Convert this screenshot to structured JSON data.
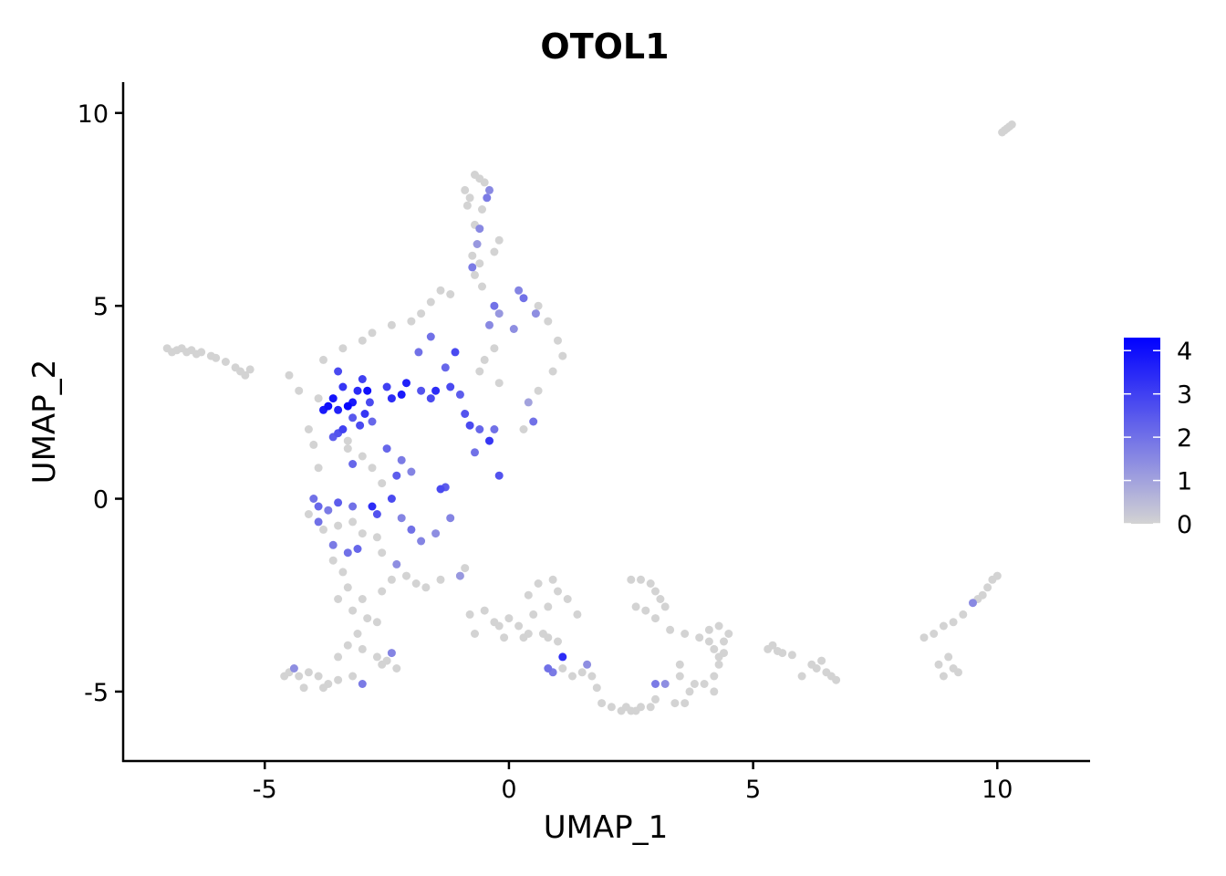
{
  "chart_data": {
    "type": "scatter",
    "title": "OTOL1",
    "xlabel": "UMAP_1",
    "ylabel": "UMAP_2",
    "xlim": [
      -7.9,
      11.9
    ],
    "ylim": [
      -6.8,
      10.8
    ],
    "x_ticks": [
      -5,
      0,
      5,
      10
    ],
    "y_ticks": [
      -5,
      0,
      5,
      10
    ],
    "x_tick_labels": [
      "-5",
      "0",
      "5",
      "10"
    ],
    "y_tick_labels": [
      "-5",
      "0",
      "5",
      "10"
    ],
    "grid": false,
    "legend": {
      "placement": "right",
      "type": "colorbar",
      "min": 0,
      "max": 4.3,
      "ticks": [
        0,
        1,
        2,
        3,
        4
      ],
      "tick_labels": [
        "0",
        "1",
        "2",
        "3",
        "4"
      ],
      "low_color": "#d3d3d3",
      "high_color": "#0000ff"
    },
    "point_color_low": "#d3d3d3",
    "point_color_high": "#0000ff",
    "points": [
      [
        -7.0,
        3.9,
        0
      ],
      [
        -6.9,
        3.8,
        0
      ],
      [
        -6.8,
        3.85,
        0
      ],
      [
        -6.7,
        3.9,
        0
      ],
      [
        -6.6,
        3.8,
        0
      ],
      [
        -6.5,
        3.85,
        0
      ],
      [
        -6.4,
        3.75,
        0
      ],
      [
        -6.3,
        3.8,
        0
      ],
      [
        -6.1,
        3.7,
        0
      ],
      [
        -6.0,
        3.65,
        0
      ],
      [
        -5.8,
        3.55,
        0
      ],
      [
        -5.6,
        3.4,
        0
      ],
      [
        -5.5,
        3.3,
        0
      ],
      [
        -5.4,
        3.2,
        0
      ],
      [
        -5.3,
        3.35,
        0
      ],
      [
        10.1,
        9.5,
        0
      ],
      [
        10.2,
        9.6,
        0
      ],
      [
        10.3,
        9.7,
        0
      ],
      [
        10.25,
        9.65,
        0
      ],
      [
        10.15,
        9.55,
        0
      ],
      [
        -0.9,
        8.0,
        0
      ],
      [
        -0.7,
        8.4,
        0
      ],
      [
        -0.6,
        8.3,
        0
      ],
      [
        -0.5,
        8.2,
        0
      ],
      [
        -0.4,
        8.0,
        1.5
      ],
      [
        -0.8,
        7.8,
        0
      ],
      [
        -0.55,
        7.5,
        0
      ],
      [
        -0.7,
        7.1,
        0
      ],
      [
        -0.6,
        7.0,
        1.5
      ],
      [
        -0.65,
        6.6,
        1.2
      ],
      [
        -0.75,
        6.3,
        0
      ],
      [
        -0.6,
        6.1,
        0
      ],
      [
        -0.7,
        5.8,
        0
      ],
      [
        -0.55,
        5.5,
        0
      ],
      [
        -0.3,
        6.4,
        0
      ],
      [
        -0.2,
        6.7,
        0
      ],
      [
        -0.75,
        6.0,
        1.8
      ],
      [
        -0.45,
        7.8,
        1.8
      ],
      [
        -0.85,
        7.6,
        0
      ],
      [
        -1.4,
        5.4,
        0
      ],
      [
        -1.2,
        5.3,
        0
      ],
      [
        -1.6,
        5.1,
        0
      ],
      [
        -1.8,
        4.8,
        0
      ],
      [
        -2.0,
        4.6,
        0
      ],
      [
        -2.4,
        4.5,
        0
      ],
      [
        -2.8,
        4.3,
        0
      ],
      [
        -3.0,
        4.1,
        0
      ],
      [
        -3.4,
        3.9,
        0
      ],
      [
        -3.8,
        3.6,
        0
      ],
      [
        -4.5,
        3.2,
        0
      ],
      [
        -4.3,
        2.8,
        0
      ],
      [
        -3.5,
        3.3,
        2.8
      ],
      [
        -3.4,
        2.9,
        3.2
      ],
      [
        -3.6,
        2.6,
        3.9
      ],
      [
        -3.7,
        2.4,
        4.0
      ],
      [
        -3.5,
        2.3,
        3.6
      ],
      [
        -3.3,
        2.4,
        4.2
      ],
      [
        -3.2,
        2.5,
        3.8
      ],
      [
        -3.1,
        2.8,
        3.4
      ],
      [
        -2.9,
        2.8,
        4.0
      ],
      [
        -3.0,
        3.1,
        3.0
      ],
      [
        -2.85,
        2.5,
        2.8
      ],
      [
        -3.2,
        2.1,
        2.5
      ],
      [
        -2.95,
        2.2,
        3.2
      ],
      [
        -3.05,
        1.9,
        2.8
      ],
      [
        -3.4,
        1.8,
        3.0
      ],
      [
        -3.5,
        1.7,
        2.6
      ],
      [
        -2.8,
        2.0,
        2.2
      ],
      [
        -3.8,
        2.3,
        3.8
      ],
      [
        -3.9,
        2.6,
        0
      ],
      [
        -3.6,
        1.6,
        2.4
      ],
      [
        -3.3,
        1.5,
        0
      ],
      [
        -2.1,
        3.0,
        3.6
      ],
      [
        -2.2,
        2.7,
        3.8
      ],
      [
        -2.4,
        2.6,
        3.4
      ],
      [
        -2.5,
        2.9,
        3.0
      ],
      [
        -1.8,
        2.8,
        2.6
      ],
      [
        -1.6,
        2.6,
        2.8
      ],
      [
        -1.5,
        2.8,
        3.4
      ],
      [
        -1.2,
        2.9,
        2.8
      ],
      [
        -1.0,
        2.7,
        2.4
      ],
      [
        -1.3,
        3.4,
        2.2
      ],
      [
        -1.1,
        3.8,
        2.8
      ],
      [
        -1.6,
        4.2,
        2.0
      ],
      [
        -1.85,
        3.8,
        2.0
      ],
      [
        -0.9,
        2.2,
        2.6
      ],
      [
        -0.8,
        1.9,
        2.8
      ],
      [
        -0.6,
        1.8,
        2.2
      ],
      [
        -0.4,
        1.5,
        3.2
      ],
      [
        -0.3,
        1.8,
        2.0
      ],
      [
        -0.7,
        1.2,
        2.0
      ],
      [
        -1.3,
        0.3,
        2.4
      ],
      [
        -1.4,
        0.25,
        2.8
      ],
      [
        -0.2,
        0.6,
        2.6
      ],
      [
        -0.5,
        3.6,
        0
      ],
      [
        -0.3,
        3.9,
        0
      ],
      [
        -0.6,
        3.3,
        0
      ],
      [
        -0.2,
        3.0,
        0
      ],
      [
        -0.3,
        5.0,
        2.0
      ],
      [
        -0.2,
        4.8,
        1.2
      ],
      [
        -0.4,
        4.5,
        1.5
      ],
      [
        0.1,
        4.4,
        1.4
      ],
      [
        0.3,
        5.2,
        2.0
      ],
      [
        0.6,
        5.0,
        0
      ],
      [
        0.8,
        4.6,
        0
      ],
      [
        1.0,
        4.1,
        0
      ],
      [
        1.1,
        3.7,
        0
      ],
      [
        0.9,
        3.3,
        0
      ],
      [
        0.6,
        2.8,
        0
      ],
      [
        0.4,
        2.5,
        1.0
      ],
      [
        0.5,
        2.0,
        2.0
      ],
      [
        0.3,
        1.8,
        0
      ],
      [
        0.55,
        4.8,
        1.4
      ],
      [
        0.2,
        5.4,
        1.6
      ],
      [
        -3.3,
        1.3,
        0
      ],
      [
        -3.0,
        1.1,
        0
      ],
      [
        -2.8,
        0.8,
        0
      ],
      [
        -2.5,
        1.3,
        2.2
      ],
      [
        -2.2,
        1.0,
        1.8
      ],
      [
        -2.0,
        0.7,
        1.6
      ],
      [
        -2.3,
        0.6,
        2.4
      ],
      [
        -2.6,
        0.4,
        0
      ],
      [
        -3.2,
        0.9,
        2.2
      ],
      [
        -3.9,
        0.8,
        0
      ],
      [
        -4.0,
        1.4,
        0
      ],
      [
        -4.1,
        1.8,
        0
      ],
      [
        -4.0,
        0.0,
        2.0
      ],
      [
        -3.9,
        -0.2,
        2.2
      ],
      [
        -3.7,
        -0.3,
        1.8
      ],
      [
        -3.5,
        -0.1,
        2.4
      ],
      [
        -3.2,
        -0.2,
        2.0
      ],
      [
        -2.8,
        -0.2,
        3.4
      ],
      [
        -2.7,
        -0.4,
        2.6
      ],
      [
        -2.4,
        0.0,
        2.8
      ],
      [
        -2.2,
        -0.5,
        1.6
      ],
      [
        -2.0,
        -0.8,
        2.0
      ],
      [
        -1.8,
        -1.1,
        1.6
      ],
      [
        -1.5,
        -0.9,
        1.4
      ],
      [
        -1.2,
        -0.5,
        1.6
      ],
      [
        -3.9,
        -0.6,
        2.0
      ],
      [
        -3.6,
        -1.2,
        1.8
      ],
      [
        -3.3,
        -1.4,
        2.0
      ],
      [
        -3.1,
        -1.3,
        2.2
      ],
      [
        -4.1,
        -0.4,
        0
      ],
      [
        -3.8,
        -0.8,
        0
      ],
      [
        -3.5,
        -0.7,
        0
      ],
      [
        -3.2,
        -0.6,
        0
      ],
      [
        -3.0,
        -0.9,
        0
      ],
      [
        -2.7,
        -1.0,
        0
      ],
      [
        -2.6,
        -1.4,
        0
      ],
      [
        -2.3,
        -1.7,
        1.4
      ],
      [
        -2.1,
        -2.0,
        0
      ],
      [
        -1.9,
        -2.2,
        0
      ],
      [
        -1.7,
        -2.3,
        0
      ],
      [
        -1.4,
        -2.1,
        0
      ],
      [
        -1.0,
        -2.0,
        1.2
      ],
      [
        -0.9,
        -1.8,
        0
      ],
      [
        -3.6,
        -1.6,
        0
      ],
      [
        -3.4,
        -1.9,
        0
      ],
      [
        -3.3,
        -2.3,
        0
      ],
      [
        -3.0,
        -2.6,
        0
      ],
      [
        -3.2,
        -2.9,
        0
      ],
      [
        -3.5,
        -2.6,
        0
      ],
      [
        -2.6,
        -2.4,
        0
      ],
      [
        -2.4,
        -2.1,
        0
      ],
      [
        -2.9,
        -3.1,
        0
      ],
      [
        -3.1,
        -3.5,
        0
      ],
      [
        -3.3,
        -3.8,
        0
      ],
      [
        -3.0,
        -3.9,
        0
      ],
      [
        -2.7,
        -4.1,
        0
      ],
      [
        -2.5,
        -4.2,
        0
      ],
      [
        -2.4,
        -4.0,
        1.6
      ],
      [
        -2.3,
        -4.4,
        0
      ],
      [
        -2.6,
        -4.3,
        0
      ],
      [
        -3.2,
        -4.6,
        0
      ],
      [
        -3.5,
        -4.7,
        0
      ],
      [
        -3.7,
        -4.8,
        0
      ],
      [
        -3.9,
        -4.6,
        0
      ],
      [
        -4.1,
        -4.5,
        0
      ],
      [
        -4.3,
        -4.6,
        0
      ],
      [
        -4.5,
        -4.5,
        0
      ],
      [
        -4.6,
        -4.6,
        0
      ],
      [
        -4.4,
        -4.4,
        1.4
      ],
      [
        -4.2,
        -4.9,
        0
      ],
      [
        -3.8,
        -4.9,
        0
      ],
      [
        -3.0,
        -4.8,
        1.8
      ],
      [
        -3.5,
        -4.1,
        0
      ],
      [
        -2.7,
        -3.2,
        0
      ],
      [
        -0.8,
        -3.0,
        0
      ],
      [
        -0.5,
        -2.9,
        0
      ],
      [
        -0.3,
        -3.2,
        0
      ],
      [
        0.0,
        -3.1,
        0
      ],
      [
        0.2,
        -3.3,
        0
      ],
      [
        0.5,
        -3.0,
        0
      ],
      [
        0.8,
        -2.8,
        0
      ],
      [
        1.0,
        -2.4,
        0
      ],
      [
        0.9,
        -2.1,
        0
      ],
      [
        0.6,
        -2.2,
        0
      ],
      [
        0.4,
        -2.5,
        0
      ],
      [
        1.2,
        -2.6,
        0
      ],
      [
        1.4,
        -3.0,
        0
      ],
      [
        0.7,
        -3.5,
        0
      ],
      [
        0.4,
        -3.5,
        0
      ],
      [
        -0.2,
        -3.3,
        0
      ],
      [
        -0.7,
        -3.5,
        0
      ],
      [
        -0.1,
        -3.6,
        0
      ],
      [
        0.3,
        -3.6,
        0
      ],
      [
        0.8,
        -3.6,
        0
      ],
      [
        1.0,
        -3.7,
        0
      ],
      [
        0.8,
        -4.4,
        2.0
      ],
      [
        0.9,
        -4.5,
        1.8
      ],
      [
        1.1,
        -4.1,
        3.4
      ],
      [
        1.1,
        -4.4,
        0
      ],
      [
        1.3,
        -4.6,
        0
      ],
      [
        1.5,
        -4.5,
        0
      ],
      [
        1.6,
        -4.3,
        1.4
      ],
      [
        1.7,
        -4.6,
        0
      ],
      [
        1.8,
        -4.9,
        0
      ],
      [
        1.9,
        -5.3,
        0
      ],
      [
        2.1,
        -5.4,
        0
      ],
      [
        2.3,
        -5.5,
        0
      ],
      [
        2.5,
        -5.5,
        0
      ],
      [
        2.7,
        -5.4,
        0
      ],
      [
        2.9,
        -5.4,
        0
      ],
      [
        3.0,
        -5.2,
        0
      ],
      [
        2.6,
        -5.5,
        0
      ],
      [
        2.4,
        -5.4,
        0
      ],
      [
        2.5,
        -2.1,
        0
      ],
      [
        2.7,
        -2.1,
        0
      ],
      [
        2.9,
        -2.2,
        0
      ],
      [
        3.0,
        -2.4,
        0
      ],
      [
        3.1,
        -2.6,
        0
      ],
      [
        3.2,
        -2.8,
        0
      ],
      [
        2.8,
        -2.9,
        0
      ],
      [
        2.6,
        -2.8,
        0
      ],
      [
        3.0,
        -3.1,
        0
      ],
      [
        3.3,
        -3.4,
        0
      ],
      [
        3.6,
        -3.5,
        0
      ],
      [
        3.0,
        -4.8,
        1.8
      ],
      [
        3.2,
        -4.8,
        1.4
      ],
      [
        3.5,
        -4.6,
        0
      ],
      [
        3.7,
        -5.0,
        0
      ],
      [
        3.8,
        -4.8,
        0
      ],
      [
        4.0,
        -4.8,
        0
      ],
      [
        4.2,
        -4.6,
        0
      ],
      [
        4.3,
        -4.3,
        0
      ],
      [
        4.4,
        -4.0,
        0
      ],
      [
        4.2,
        -3.9,
        0
      ],
      [
        4.3,
        -4.1,
        0
      ],
      [
        4.1,
        -3.7,
        0
      ],
      [
        4.5,
        -3.5,
        0
      ],
      [
        4.3,
        -3.3,
        0
      ],
      [
        4.1,
        -3.4,
        0
      ],
      [
        3.9,
        -3.6,
        0
      ],
      [
        4.4,
        -3.7,
        0
      ],
      [
        4.2,
        -5.0,
        0
      ],
      [
        3.6,
        -5.3,
        0
      ],
      [
        3.4,
        -5.3,
        0
      ],
      [
        3.5,
        -4.3,
        0
      ],
      [
        5.3,
        -3.9,
        0
      ],
      [
        5.4,
        -3.8,
        0
      ],
      [
        5.5,
        -3.95,
        0
      ],
      [
        5.6,
        -4.0,
        0
      ],
      [
        5.8,
        -4.05,
        0
      ],
      [
        6.2,
        -4.3,
        0
      ],
      [
        6.3,
        -4.4,
        0
      ],
      [
        6.5,
        -4.5,
        0
      ],
      [
        6.6,
        -4.6,
        0
      ],
      [
        6.7,
        -4.7,
        0
      ],
      [
        6.4,
        -4.2,
        0
      ],
      [
        6.0,
        -4.6,
        0
      ],
      [
        8.5,
        -3.6,
        0
      ],
      [
        8.7,
        -3.5,
        0
      ],
      [
        8.9,
        -3.3,
        0
      ],
      [
        9.1,
        -3.2,
        0
      ],
      [
        9.3,
        -3.0,
        0
      ],
      [
        9.5,
        -2.7,
        1.5
      ],
      [
        9.7,
        -2.5,
        0
      ],
      [
        9.8,
        -2.3,
        0
      ],
      [
        9.9,
        -2.1,
        0
      ],
      [
        10.0,
        -2.0,
        0
      ],
      [
        9.6,
        -2.6,
        0
      ],
      [
        9.0,
        -4.1,
        0
      ],
      [
        9.1,
        -4.4,
        0
      ],
      [
        9.2,
        -4.5,
        0
      ],
      [
        8.8,
        -4.3,
        0
      ],
      [
        8.9,
        -4.6,
        0
      ]
    ]
  }
}
